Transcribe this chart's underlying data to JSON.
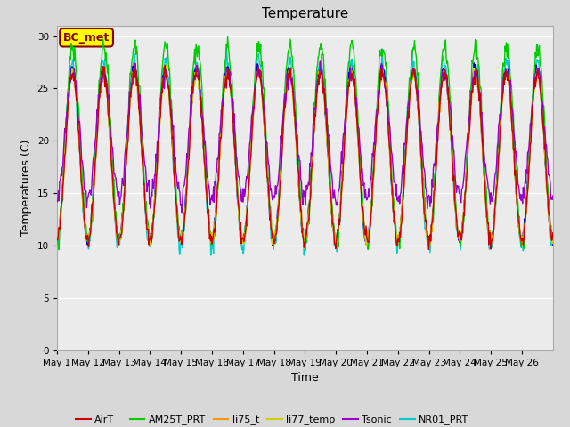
{
  "title": "Temperature",
  "xlabel": "Time",
  "ylabel": "Temperatures (C)",
  "ylim": [
    0,
    31
  ],
  "yticks": [
    0,
    5,
    10,
    15,
    20,
    25,
    30
  ],
  "n_days": 16,
  "annotation_text": "BC_met",
  "series_colors": {
    "AirT": "#cc0000",
    "li75_t_blue": "#0000cc",
    "AM25T_PRT": "#00cc00",
    "li75_t_orange": "#ff9900",
    "li77_temp": "#cccc00",
    "Tsonic": "#9900cc",
    "NR01_PRT": "#00cccc"
  },
  "fig_bg_color": "#d8d8d8",
  "plot_bg_color": "#ebebeb",
  "line_width": 1.0,
  "tick_labels": [
    "May 1",
    "May 12",
    "May 13",
    "May 14",
    "May 15",
    "May 16",
    "May 17",
    "May 18",
    "May 19",
    "May 20",
    "May 21",
    "May 22",
    "May 23",
    "May 24",
    "May 25",
    "May 26"
  ],
  "tick_label_fontsize": 7.5,
  "axis_label_fontsize": 9,
  "title_fontsize": 11
}
